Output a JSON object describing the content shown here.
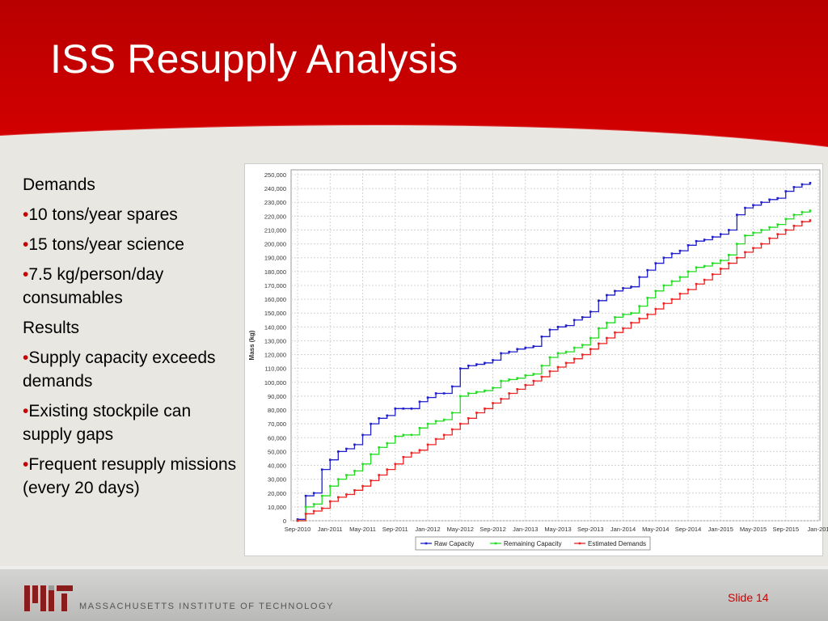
{
  "slide": {
    "title": "ISS Resupply Analysis",
    "number_label": "Slide 14",
    "institution": "MASSACHUSETTS INSTITUTE OF TECHNOLOGY",
    "logo": "MIT",
    "colors": {
      "header_red": "#cc0000",
      "background": "#e9e7e1"
    }
  },
  "bullets": {
    "demands_heading": "Demands",
    "d1": "10 tons/year  spares",
    "d2": "15 tons/year science",
    "d3": "7.5 kg/person/day consumables",
    "results_heading": "Results",
    "r1": "Supply capacity exceeds demands",
    "r2": "Existing stockpile can supply gaps",
    "r3": "Frequent resupply missions (every 20 days)",
    "marker": "•"
  },
  "chart_data": {
    "type": "line",
    "title": "",
    "xlabel": "",
    "ylabel": "Mass (kg)",
    "ylim": [
      0,
      250000
    ],
    "xlim": [
      "2010-09",
      "2016-01"
    ],
    "grid": true,
    "legend_position": "bottom",
    "y_ticks": [
      "0",
      "10,000",
      "20,000",
      "30,000",
      "40,000",
      "50,000",
      "60,000",
      "70,000",
      "80,000",
      "90,000",
      "100,000",
      "110,000",
      "120,000",
      "130,000",
      "140,000",
      "150,000",
      "160,000",
      "170,000",
      "180,000",
      "190,000",
      "200,000",
      "210,000",
      "220,000",
      "230,000",
      "240,000",
      "250,000"
    ],
    "x_ticks": [
      "Sep-2010",
      "Jan-2011",
      "May-2011",
      "Sep-2011",
      "Jan-2012",
      "May-2012",
      "Sep-2012",
      "Jan-2013",
      "May-2013",
      "Sep-2013",
      "Jan-2014",
      "May-2014",
      "Sep-2014",
      "Jan-2015",
      "May-2015",
      "Sep-2015",
      "Jan-201"
    ],
    "series": [
      {
        "name": "Raw Capacity",
        "color": "#1f1fcc",
        "points": [
          [
            "2010-09",
            1000
          ],
          [
            "2010-10",
            18000
          ],
          [
            "2010-11",
            20000
          ],
          [
            "2010-12",
            37000
          ],
          [
            "2011-01",
            44000
          ],
          [
            "2011-02",
            50000
          ],
          [
            "2011-03",
            52000
          ],
          [
            "2011-04",
            55000
          ],
          [
            "2011-05",
            62000
          ],
          [
            "2011-06",
            70000
          ],
          [
            "2011-07",
            74000
          ],
          [
            "2011-08",
            76000
          ],
          [
            "2011-09",
            81000
          ],
          [
            "2011-10",
            81000
          ],
          [
            "2011-11",
            81000
          ],
          [
            "2011-12",
            86000
          ],
          [
            "2012-01",
            89000
          ],
          [
            "2012-02",
            92000
          ],
          [
            "2012-03",
            92000
          ],
          [
            "2012-04",
            97000
          ],
          [
            "2012-05",
            110000
          ],
          [
            "2012-06",
            112000
          ],
          [
            "2012-07",
            113000
          ],
          [
            "2012-08",
            114000
          ],
          [
            "2012-09",
            116000
          ],
          [
            "2012-10",
            121000
          ],
          [
            "2012-11",
            122000
          ],
          [
            "2012-12",
            124000
          ],
          [
            "2013-01",
            125000
          ],
          [
            "2013-02",
            126000
          ],
          [
            "2013-03",
            133000
          ],
          [
            "2013-04",
            138000
          ],
          [
            "2013-05",
            140000
          ],
          [
            "2013-06",
            141000
          ],
          [
            "2013-07",
            145000
          ],
          [
            "2013-08",
            147000
          ],
          [
            "2013-09",
            151000
          ],
          [
            "2013-10",
            159000
          ],
          [
            "2013-11",
            163000
          ],
          [
            "2013-12",
            166000
          ],
          [
            "2014-01",
            168000
          ],
          [
            "2014-02",
            169000
          ],
          [
            "2014-03",
            176000
          ],
          [
            "2014-04",
            181000
          ],
          [
            "2014-05",
            186000
          ],
          [
            "2014-06",
            190000
          ],
          [
            "2014-07",
            193000
          ],
          [
            "2014-08",
            195000
          ],
          [
            "2014-09",
            199000
          ],
          [
            "2014-10",
            202000
          ],
          [
            "2014-11",
            203000
          ],
          [
            "2014-12",
            205000
          ],
          [
            "2015-01",
            207000
          ],
          [
            "2015-02",
            210000
          ],
          [
            "2015-03",
            221000
          ],
          [
            "2015-04",
            226000
          ],
          [
            "2015-05",
            228000
          ],
          [
            "2015-06",
            230000
          ],
          [
            "2015-07",
            232000
          ],
          [
            "2015-08",
            233000
          ],
          [
            "2015-09",
            238000
          ],
          [
            "2015-10",
            241000
          ],
          [
            "2015-11",
            243000
          ],
          [
            "2015-12",
            244000
          ]
        ]
      },
      {
        "name": "Remaining Capacity",
        "color": "#22dd22",
        "points": [
          [
            "2010-09",
            0
          ],
          [
            "2010-10",
            10000
          ],
          [
            "2010-11",
            12000
          ],
          [
            "2010-12",
            18000
          ],
          [
            "2011-01",
            25000
          ],
          [
            "2011-02",
            30000
          ],
          [
            "2011-03",
            33000
          ],
          [
            "2011-04",
            36000
          ],
          [
            "2011-05",
            41000
          ],
          [
            "2011-06",
            48000
          ],
          [
            "2011-07",
            53000
          ],
          [
            "2011-08",
            56000
          ],
          [
            "2011-09",
            61000
          ],
          [
            "2011-10",
            62000
          ],
          [
            "2011-11",
            62000
          ],
          [
            "2011-12",
            67000
          ],
          [
            "2012-01",
            70000
          ],
          [
            "2012-02",
            72000
          ],
          [
            "2012-03",
            73000
          ],
          [
            "2012-04",
            78000
          ],
          [
            "2012-05",
            90000
          ],
          [
            "2012-06",
            92000
          ],
          [
            "2012-07",
            93000
          ],
          [
            "2012-08",
            94000
          ],
          [
            "2012-09",
            96000
          ],
          [
            "2012-10",
            101000
          ],
          [
            "2012-11",
            102000
          ],
          [
            "2012-12",
            103000
          ],
          [
            "2013-01",
            105000
          ],
          [
            "2013-02",
            106000
          ],
          [
            "2013-03",
            112000
          ],
          [
            "2013-04",
            118000
          ],
          [
            "2013-05",
            121000
          ],
          [
            "2013-06",
            122000
          ],
          [
            "2013-07",
            125000
          ],
          [
            "2013-08",
            127000
          ],
          [
            "2013-09",
            132000
          ],
          [
            "2013-10",
            139000
          ],
          [
            "2013-11",
            143000
          ],
          [
            "2013-12",
            147000
          ],
          [
            "2014-01",
            149000
          ],
          [
            "2014-02",
            150000
          ],
          [
            "2014-03",
            155000
          ],
          [
            "2014-04",
            161000
          ],
          [
            "2014-05",
            166000
          ],
          [
            "2014-06",
            170000
          ],
          [
            "2014-07",
            173000
          ],
          [
            "2014-08",
            176000
          ],
          [
            "2014-09",
            180000
          ],
          [
            "2014-10",
            183000
          ],
          [
            "2014-11",
            184000
          ],
          [
            "2014-12",
            186000
          ],
          [
            "2015-01",
            188000
          ],
          [
            "2015-02",
            192000
          ],
          [
            "2015-03",
            200000
          ],
          [
            "2015-04",
            206000
          ],
          [
            "2015-05",
            208000
          ],
          [
            "2015-06",
            210000
          ],
          [
            "2015-07",
            212000
          ],
          [
            "2015-08",
            214000
          ],
          [
            "2015-09",
            218000
          ],
          [
            "2015-10",
            221000
          ],
          [
            "2015-11",
            223000
          ],
          [
            "2015-12",
            224000
          ]
        ]
      },
      {
        "name": "Estimated Demands",
        "color": "#ee2222",
        "points": [
          [
            "2010-09",
            0
          ],
          [
            "2010-10",
            5000
          ],
          [
            "2010-11",
            7000
          ],
          [
            "2010-12",
            9000
          ],
          [
            "2011-01",
            14000
          ],
          [
            "2011-02",
            17000
          ],
          [
            "2011-03",
            19000
          ],
          [
            "2011-04",
            22000
          ],
          [
            "2011-05",
            25000
          ],
          [
            "2011-06",
            29000
          ],
          [
            "2011-07",
            33000
          ],
          [
            "2011-08",
            37000
          ],
          [
            "2011-09",
            41000
          ],
          [
            "2011-10",
            46000
          ],
          [
            "2011-11",
            49000
          ],
          [
            "2011-12",
            51000
          ],
          [
            "2012-01",
            55000
          ],
          [
            "2012-02",
            59000
          ],
          [
            "2012-03",
            62000
          ],
          [
            "2012-04",
            66000
          ],
          [
            "2012-05",
            70000
          ],
          [
            "2012-06",
            74000
          ],
          [
            "2012-07",
            78000
          ],
          [
            "2012-08",
            81000
          ],
          [
            "2012-09",
            85000
          ],
          [
            "2012-10",
            88000
          ],
          [
            "2012-11",
            92000
          ],
          [
            "2012-12",
            95000
          ],
          [
            "2013-01",
            98000
          ],
          [
            "2013-02",
            101000
          ],
          [
            "2013-03",
            104000
          ],
          [
            "2013-04",
            108000
          ],
          [
            "2013-05",
            111000
          ],
          [
            "2013-06",
            114000
          ],
          [
            "2013-07",
            117000
          ],
          [
            "2013-08",
            120000
          ],
          [
            "2013-09",
            124000
          ],
          [
            "2013-10",
            128000
          ],
          [
            "2013-11",
            132000
          ],
          [
            "2013-12",
            136000
          ],
          [
            "2014-01",
            139000
          ],
          [
            "2014-02",
            143000
          ],
          [
            "2014-03",
            146000
          ],
          [
            "2014-04",
            149000
          ],
          [
            "2014-05",
            153000
          ],
          [
            "2014-06",
            157000
          ],
          [
            "2014-07",
            160000
          ],
          [
            "2014-08",
            164000
          ],
          [
            "2014-09",
            167000
          ],
          [
            "2014-10",
            171000
          ],
          [
            "2014-11",
            174000
          ],
          [
            "2014-12",
            178000
          ],
          [
            "2015-01",
            182000
          ],
          [
            "2015-02",
            186000
          ],
          [
            "2015-03",
            190000
          ],
          [
            "2015-04",
            194000
          ],
          [
            "2015-05",
            197000
          ],
          [
            "2015-06",
            200000
          ],
          [
            "2015-07",
            204000
          ],
          [
            "2015-08",
            207000
          ],
          [
            "2015-09",
            210000
          ],
          [
            "2015-10",
            213000
          ],
          [
            "2015-11",
            216000
          ],
          [
            "2015-12",
            217000
          ]
        ]
      }
    ]
  }
}
